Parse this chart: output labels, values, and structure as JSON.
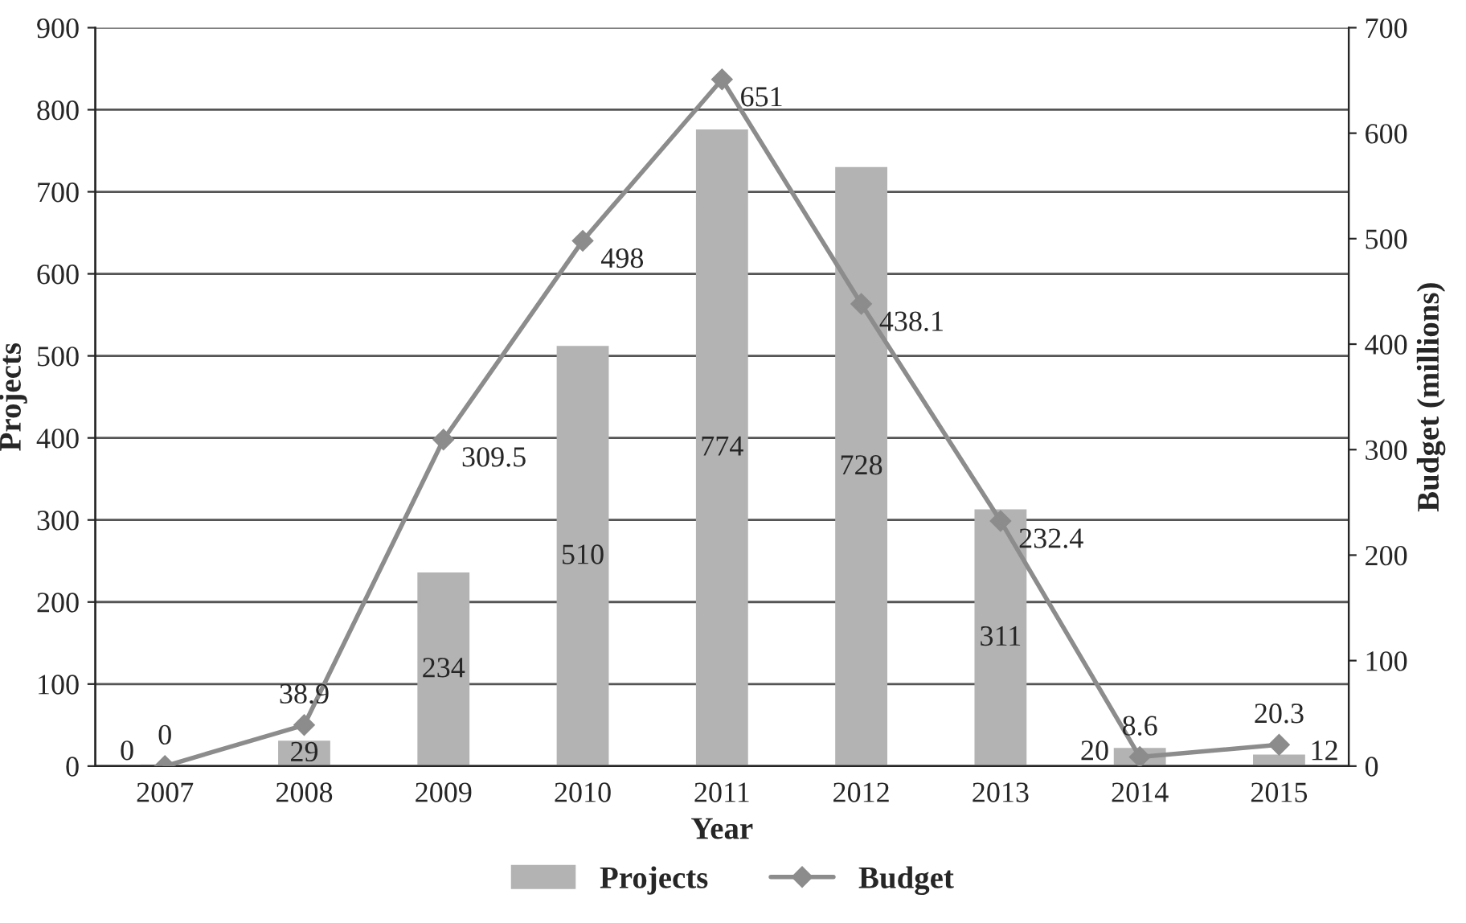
{
  "chart_data": {
    "type": "bar",
    "xlabel": "Year",
    "ylabel": "Projects",
    "y2label": "Budget (millions)",
    "categories": [
      "2007",
      "2008",
      "2009",
      "2010",
      "2011",
      "2012",
      "2013",
      "2014",
      "2015"
    ],
    "series": [
      {
        "name": "Projects",
        "color": "#b3b3b3",
        "values": [
          0,
          29,
          234,
          510,
          774,
          728,
          311,
          20,
          12
        ]
      },
      {
        "name": "Budget",
        "type": "line",
        "axis": "y2",
        "color": "#8c8c8c",
        "marker": "diamond",
        "values": [
          0,
          38.9,
          309.5,
          498,
          651,
          438.1,
          232.4,
          8.6,
          20.3
        ]
      }
    ],
    "ylim": [
      0,
      900
    ],
    "yticks": [
      0,
      100,
      200,
      300,
      400,
      500,
      600,
      700,
      800,
      900
    ],
    "y2lim": [
      0,
      700
    ],
    "y2ticks": [
      0,
      100,
      200,
      300,
      400,
      500,
      600,
      700
    ],
    "grid": "y",
    "legend": "bottom",
    "data_labels": true
  }
}
